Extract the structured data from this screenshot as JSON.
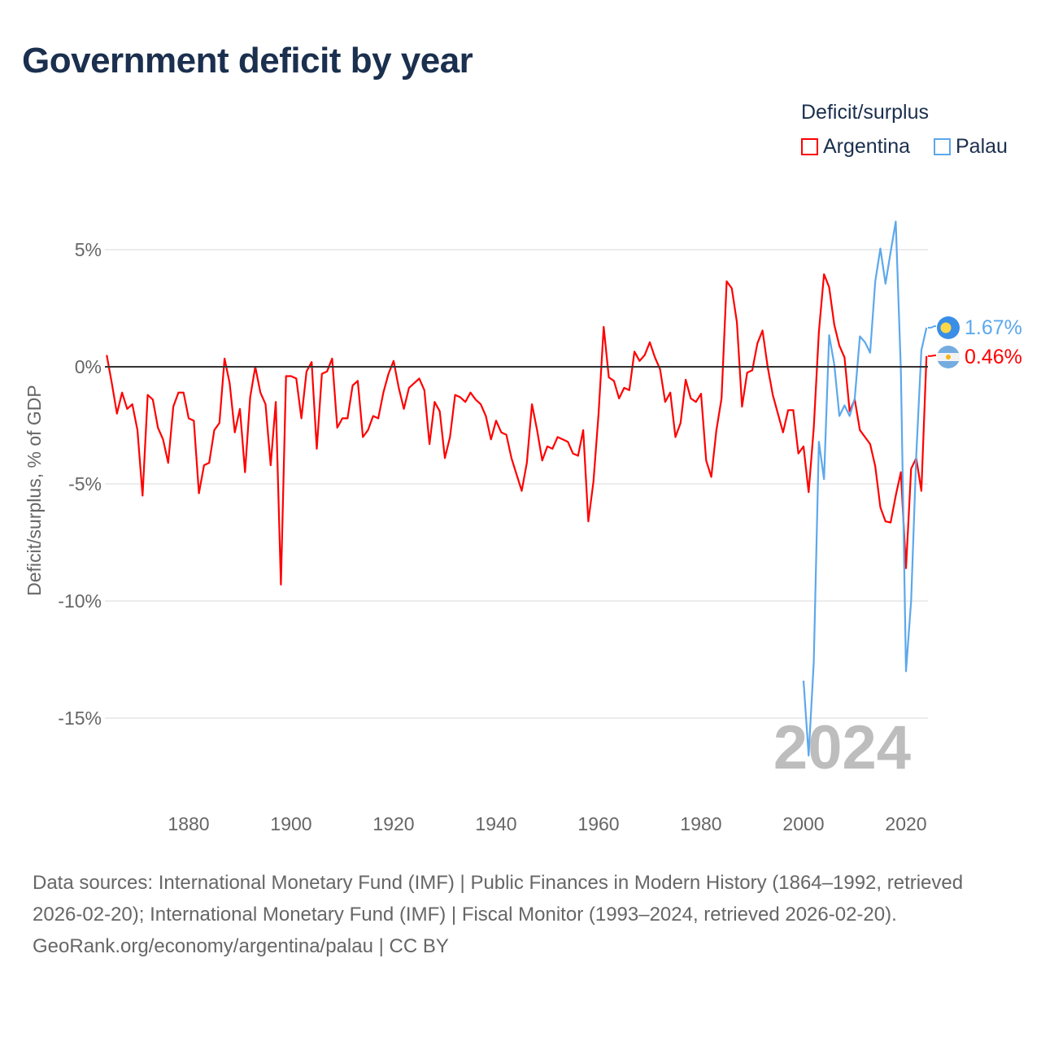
{
  "title": "Government deficit by year",
  "legend": {
    "title": "Deficit/surplus",
    "items": [
      {
        "name": "Argentina",
        "color": "#ff0000"
      },
      {
        "name": "Palau",
        "color": "#5ca8ec"
      }
    ]
  },
  "footer": {
    "sources": "Data sources: International Monetary Fund (IMF) | Public Finances in Modern History (1864–1992, retrieved 2026-02-20); International Monetary Fund (IMF) | Fiscal Monitor (1993–2024, retrieved 2026-02-20).",
    "credit": "GeoRank.org/economy/argentina/palau | CC BY"
  },
  "chart_data": {
    "type": "line",
    "title": "Government deficit by year",
    "ylabel": "Deficit/surplus, % of GDP",
    "xlabel": "",
    "year_watermark": "2024",
    "xlim": [
      1864,
      2024
    ],
    "ylim": [
      -17,
      6.5
    ],
    "x_ticks": [
      1880,
      1900,
      1920,
      1940,
      1960,
      1980,
      2000,
      2020
    ],
    "y_ticks": [
      {
        "v": 5,
        "label": "5%"
      },
      {
        "v": 0,
        "label": "0%"
      },
      {
        "v": -5,
        "label": "-5%"
      },
      {
        "v": -10,
        "label": "-10%"
      },
      {
        "v": -15,
        "label": "-15%"
      }
    ],
    "series": [
      {
        "name": "Argentina",
        "color": "#ff0000",
        "end_label": "0.46%",
        "start_year": 1864,
        "values": [
          0.5,
          -0.7,
          -2.0,
          -1.1,
          -1.8,
          -1.6,
          -2.7,
          -5.5,
          -1.2,
          -1.4,
          -2.6,
          -3.1,
          -4.1,
          -1.7,
          -1.1,
          -1.1,
          -2.2,
          -2.3,
          -5.4,
          -4.2,
          -4.1,
          -2.7,
          -2.4,
          0.35,
          -0.7,
          -2.8,
          -1.8,
          -4.5,
          -1.3,
          0.0,
          -1.1,
          -1.6,
          -4.2,
          -1.5,
          -9.3,
          -0.4,
          -0.4,
          -0.5,
          -2.2,
          -0.2,
          0.2,
          -3.5,
          -0.3,
          -0.2,
          0.35,
          -2.6,
          -2.2,
          -2.2,
          -0.8,
          -0.6,
          -3.0,
          -2.7,
          -2.1,
          -2.2,
          -1.1,
          -0.3,
          0.25,
          -0.9,
          -1.8,
          -0.9,
          -0.7,
          -0.5,
          -1.0,
          -3.3,
          -1.5,
          -1.9,
          -3.9,
          -3.0,
          -1.2,
          -1.3,
          -1.5,
          -1.1,
          -1.4,
          -1.6,
          -2.1,
          -3.1,
          -2.3,
          -2.8,
          -2.9,
          -3.9,
          -4.6,
          -5.3,
          -4.1,
          -1.6,
          -2.7,
          -4.0,
          -3.4,
          -3.5,
          -3.0,
          -3.1,
          -3.2,
          -3.7,
          -3.8,
          -2.7,
          -6.6,
          -4.9,
          -2.0,
          1.7,
          -0.45,
          -0.6,
          -1.35,
          -0.9,
          -1.0,
          0.65,
          0.25,
          0.5,
          1.05,
          0.4,
          -0.1,
          -1.5,
          -1.1,
          -3.0,
          -2.4,
          -0.55,
          -1.35,
          -1.5,
          -1.15,
          -4.0,
          -4.7,
          -2.7,
          -1.35,
          3.65,
          3.35,
          1.9,
          -1.7,
          -0.25,
          -0.15,
          1.0,
          1.55,
          0.0,
          -1.2,
          -2.0,
          -2.8,
          -1.85,
          -1.85,
          -3.7,
          -3.4,
          -5.35,
          -2.6,
          1.5,
          3.95,
          3.4,
          1.8,
          0.9,
          0.4,
          -1.9,
          -1.4,
          -2.7,
          -3.0,
          -3.3,
          -4.25,
          -6.0,
          -6.6,
          -6.65,
          -5.5,
          -4.5,
          -8.6,
          -4.35,
          -3.9,
          -5.3,
          0.46
        ]
      },
      {
        "name": "Palau",
        "color": "#5ca8ec",
        "end_label": "1.67%",
        "start_year": 2000,
        "values": [
          -13.4,
          -16.6,
          -12.6,
          -3.2,
          -4.8,
          1.35,
          0.1,
          -2.1,
          -1.65,
          -2.1,
          -1.35,
          1.3,
          1.05,
          0.6,
          3.65,
          5.05,
          3.55,
          4.9,
          6.2,
          -0.15,
          -13.0,
          -10.0,
          -3.8,
          0.7,
          1.67
        ]
      }
    ]
  }
}
